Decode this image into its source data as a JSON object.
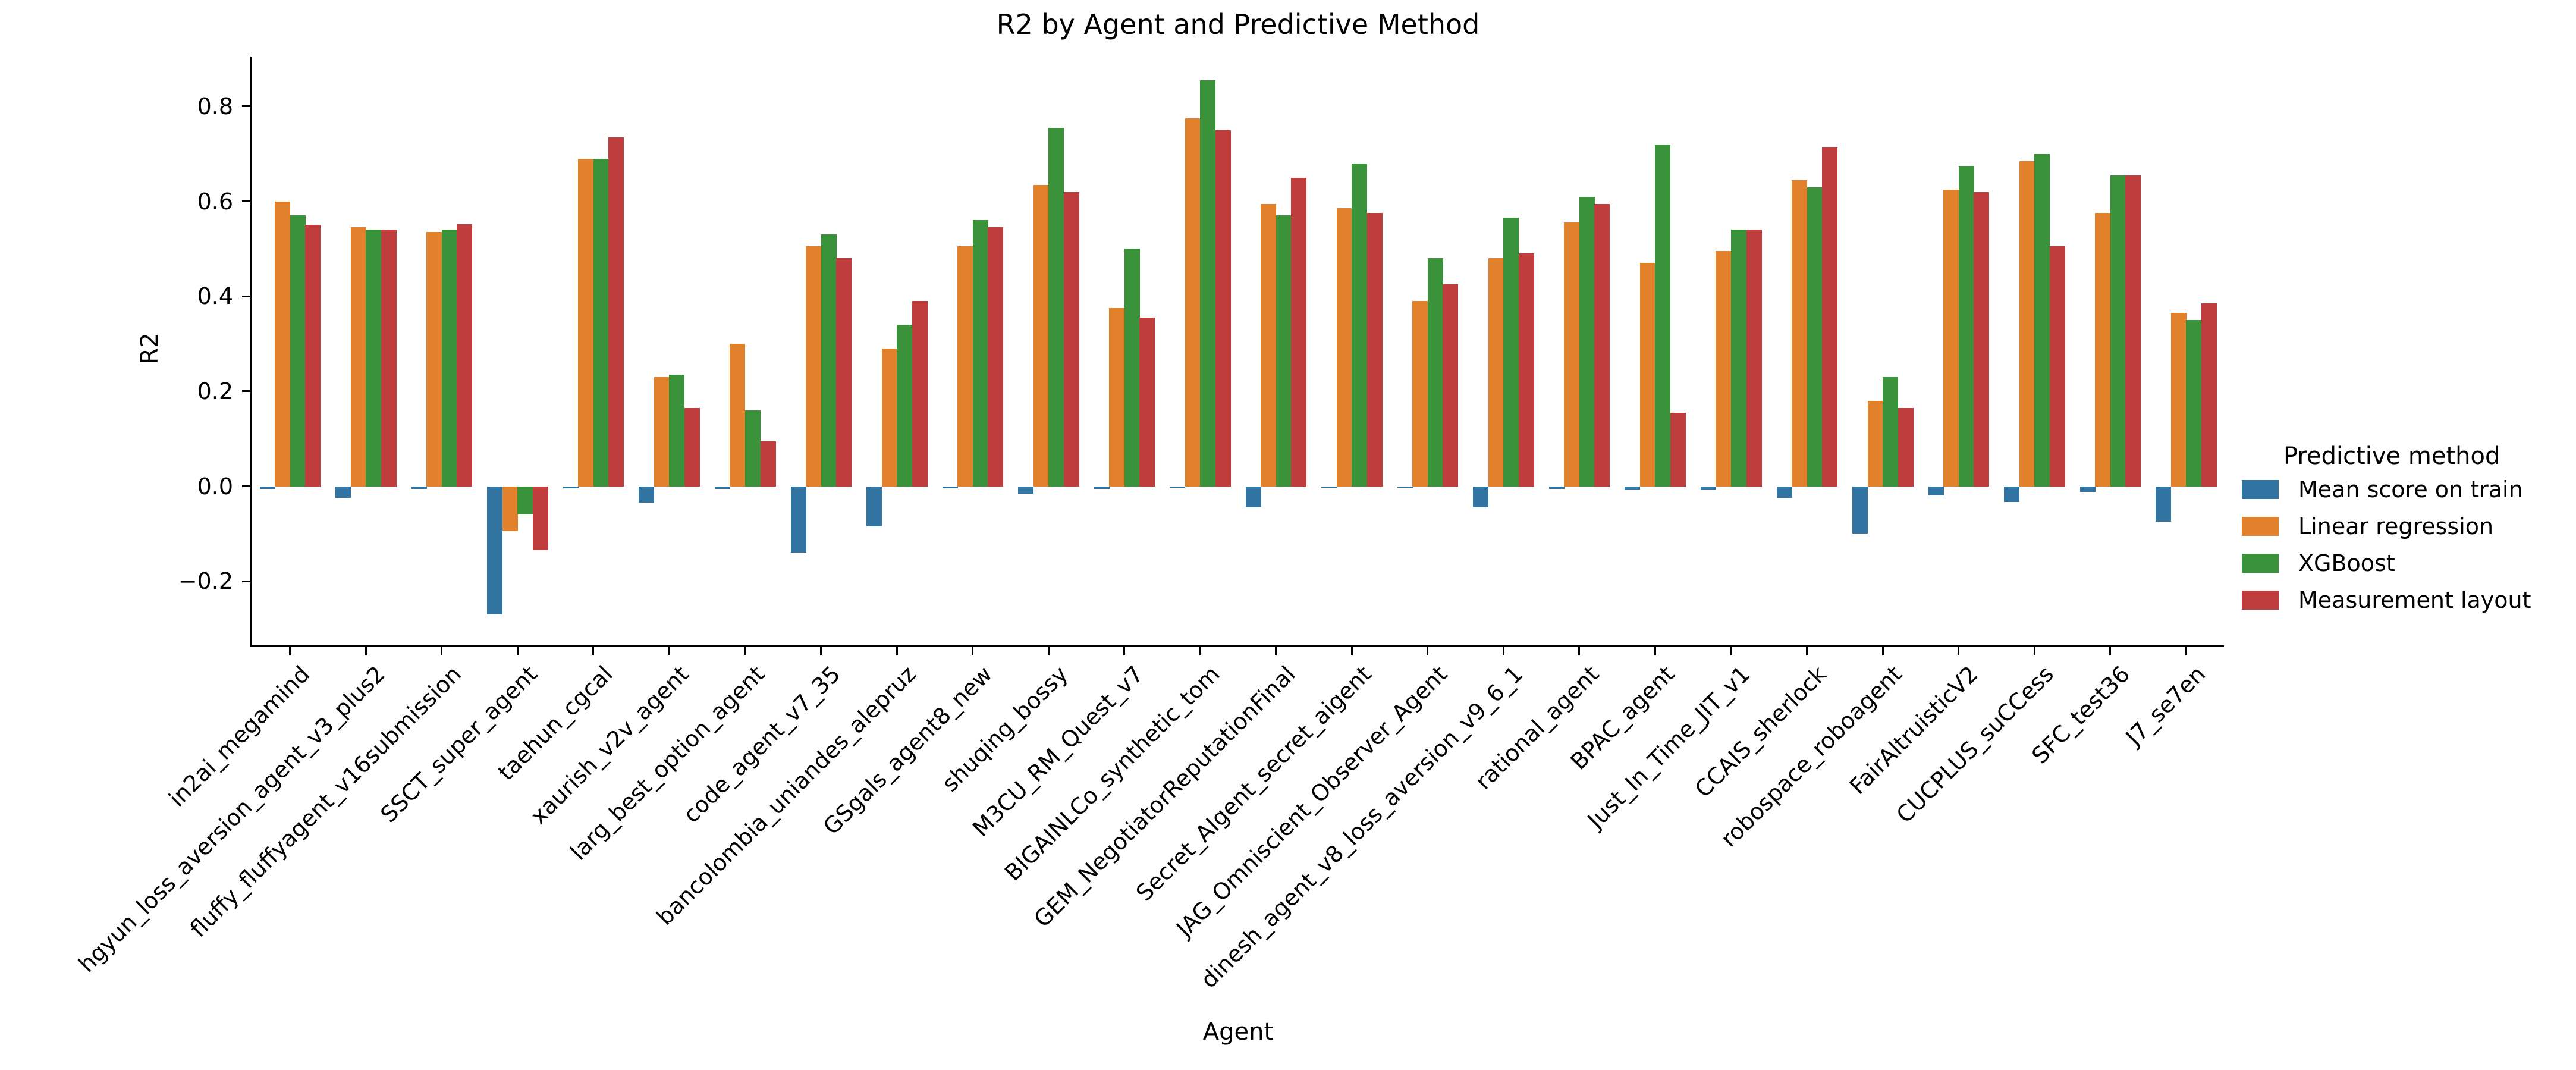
{
  "title": "R2 by Agent and Predictive Method",
  "xlabel": "Agent",
  "ylabel": "R2",
  "legend": {
    "title": "Predictive method"
  },
  "colors": {
    "blue": "#3274a1",
    "orange": "#e1812c",
    "green": "#3a923a",
    "red": "#c03d3e"
  },
  "chart_data": {
    "type": "bar",
    "title": "R2 by Agent and Predictive Method",
    "xlabel": "Agent",
    "ylabel": "R2",
    "grid": false,
    "legend_position": "right",
    "legend_title": "Predictive method",
    "ylim": [
      -0.335,
      0.905
    ],
    "yticks": [
      -0.2,
      0.0,
      0.2,
      0.4,
      0.6,
      0.8
    ],
    "ytick_labels": [
      "−0.2",
      "0.0",
      "0.2",
      "0.4",
      "0.6",
      "0.8"
    ],
    "categories": [
      "in2ai_megamind",
      "hgyun_loss_aversion_agent_v3_plus2",
      "fluffy_fluffyagent_v16submission",
      "SSCT_super_agent",
      "taehun_cgcal",
      "xaurish_v2v_agent",
      "larg_best_option_agent",
      "code_agent_v7_35",
      "bancolombia_uniandes_alepruz",
      "GSgals_agent8_new",
      "shuqing_bossy",
      "M3CU_RM_Quest_v7",
      "BIGAINLCo_synthetic_tom",
      "GEM_NegotiatorReputationFinal",
      "Secret_AIgent_secret_aigent",
      "JAG_Omniscient_Observer_Agent",
      "dinesh_agent_v8_loss_aversion_v9_6_1",
      "rational_agent",
      "BPAC_agent",
      "Just_In_Time_JIT_v1",
      "CCAIS_sherlock",
      "robospace_roboagent",
      "FairAltruisticV2",
      "CUCPLUS_suCCess",
      "SFC_test36",
      "J7_se7en"
    ],
    "series": [
      {
        "name": "Mean score on train",
        "color": "#3274a1",
        "values": [
          -0.005,
          -0.025,
          -0.005,
          -0.27,
          -0.004,
          -0.035,
          -0.005,
          -0.14,
          -0.085,
          -0.004,
          -0.015,
          -0.005,
          -0.003,
          -0.045,
          -0.003,
          -0.003,
          -0.045,
          -0.005,
          -0.008,
          -0.008,
          -0.025,
          -0.1,
          -0.02,
          -0.033,
          -0.012,
          -0.075
        ]
      },
      {
        "name": "Linear regression",
        "color": "#e1812c",
        "values": [
          0.6,
          0.545,
          0.535,
          -0.095,
          0.69,
          0.23,
          0.3,
          0.505,
          0.29,
          0.505,
          0.635,
          0.375,
          0.775,
          0.595,
          0.585,
          0.39,
          0.48,
          0.555,
          0.47,
          0.495,
          0.645,
          0.18,
          0.625,
          0.685,
          0.575,
          0.365
        ]
      },
      {
        "name": "XGBoost",
        "color": "#3a923a",
        "values": [
          0.57,
          0.54,
          0.54,
          -0.06,
          0.69,
          0.235,
          0.16,
          0.53,
          0.34,
          0.56,
          0.755,
          0.5,
          0.855,
          0.57,
          0.68,
          0.48,
          0.565,
          0.61,
          0.72,
          0.54,
          0.63,
          0.23,
          0.675,
          0.7,
          0.655,
          0.35
        ]
      },
      {
        "name": "Measurement layout",
        "color": "#c03d3e",
        "values": [
          0.55,
          0.54,
          0.552,
          -0.135,
          0.735,
          0.165,
          0.095,
          0.48,
          0.39,
          0.545,
          0.62,
          0.355,
          0.75,
          0.65,
          0.575,
          0.425,
          0.49,
          0.595,
          0.155,
          0.54,
          0.715,
          0.165,
          0.62,
          0.505,
          0.655,
          0.385
        ]
      }
    ]
  }
}
